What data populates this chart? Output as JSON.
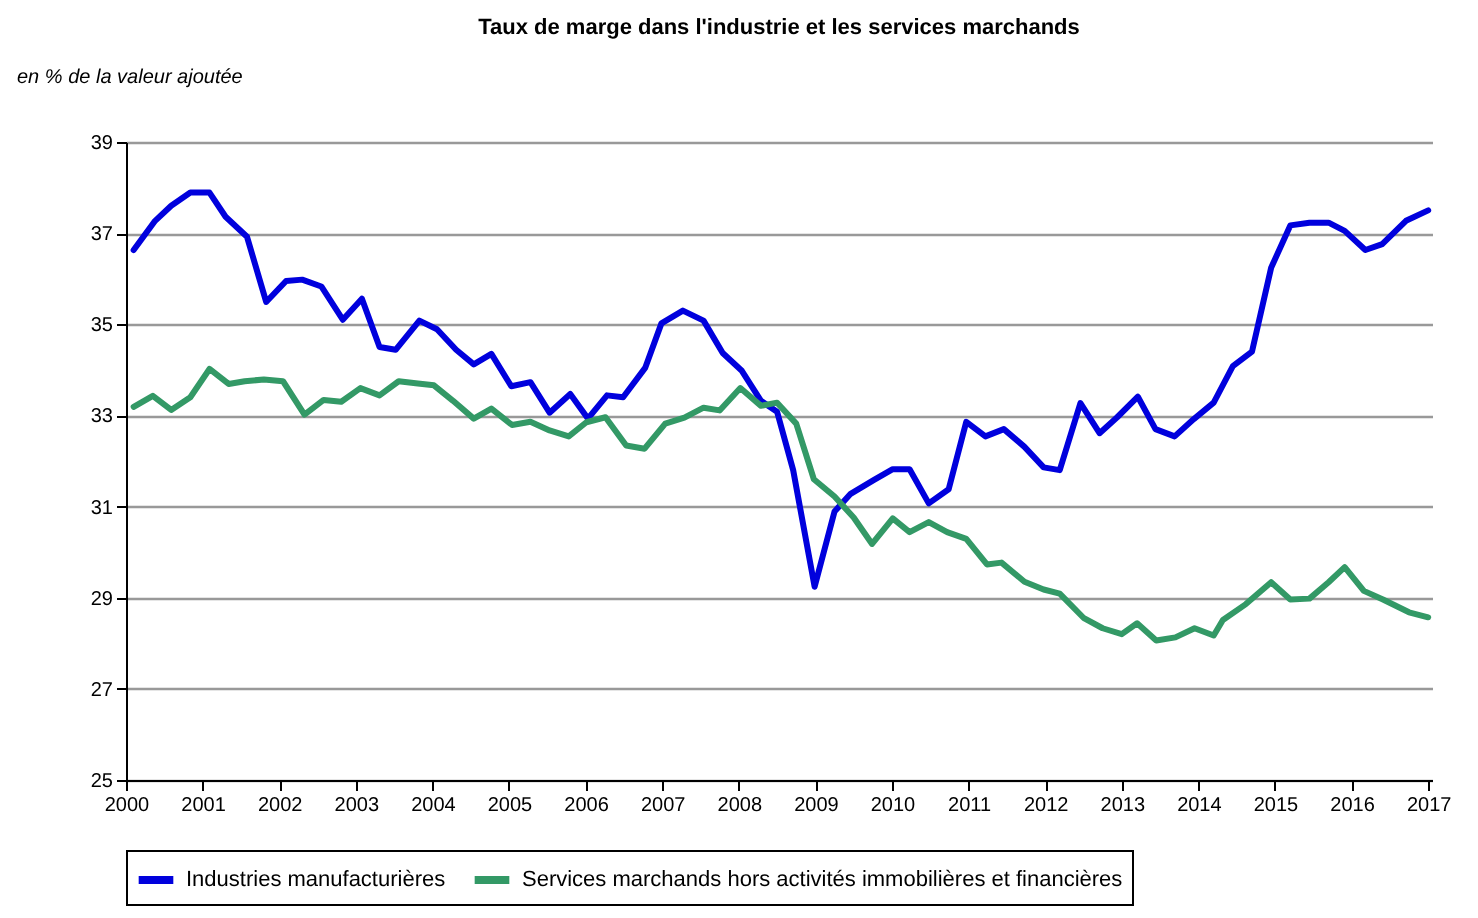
{
  "chart_data": {
    "type": "line",
    "title": "Taux de marge dans l'industrie et les services marchands",
    "ylabel": "en % de la valeur ajoutée",
    "xlim": [
      2000,
      2017.05
    ],
    "xticks": [
      2000,
      2001,
      2002,
      2003,
      2004,
      2005,
      2006,
      2007,
      2008,
      2009,
      2010,
      2011,
      2012,
      2013,
      2014,
      2015,
      2016,
      2017
    ],
    "ylim": [
      25,
      39
    ],
    "yticks": [
      25,
      27,
      29,
      31,
      33,
      35,
      37,
      39
    ],
    "grid": "y",
    "legend": "bottom",
    "marker": "none",
    "series": [
      {
        "name": "Industries manufacturières",
        "color": "#0000dd",
        "x": [
          2000.1,
          2000.38,
          2000.59,
          2000.84,
          2001.09,
          2001.3,
          2001.58,
          2001.83,
          2002.09,
          2002.3,
          2002.55,
          2002.83,
          2003.08,
          2003.31,
          2003.52,
          2003.83,
          2004.06,
          2004.31,
          2004.54,
          2004.77,
          2005.03,
          2005.28,
          2005.53,
          2005.8,
          2006.03,
          2006.28,
          2006.49,
          2006.78,
          2006.99,
          2007.27,
          2007.54,
          2007.79,
          2008.04,
          2008.29,
          2008.5,
          2008.71,
          2008.99,
          2009.25,
          2009.46,
          2009.76,
          2010.01,
          2010.23,
          2010.48,
          2010.74,
          2010.97,
          2011.22,
          2011.46,
          2011.73,
          2011.98,
          2012.19,
          2012.46,
          2012.71,
          2012.94,
          2013.21,
          2013.44,
          2013.69,
          2013.94,
          2014.2,
          2014.45,
          2014.7,
          2014.95,
          2015.2,
          2015.45,
          2015.7,
          2015.91,
          2016.18,
          2016.4,
          2016.71,
          2017.0
        ],
        "values": [
          36.63,
          37.27,
          37.6,
          37.89,
          37.89,
          37.36,
          36.92,
          35.49,
          35.95,
          35.98,
          35.83,
          35.1,
          35.56,
          34.5,
          34.44,
          35.08,
          34.89,
          34.44,
          34.12,
          34.35,
          33.64,
          33.73,
          33.06,
          33.47,
          32.93,
          33.44,
          33.4,
          34.05,
          35.02,
          35.3,
          35.08,
          34.37,
          33.98,
          33.32,
          33.08,
          31.8,
          29.24,
          30.89,
          31.28,
          31.58,
          31.82,
          31.82,
          31.07,
          31.38,
          32.86,
          32.54,
          32.7,
          32.31,
          31.86,
          31.8,
          33.27,
          32.61,
          32.96,
          33.41,
          32.7,
          32.54,
          32.92,
          33.28,
          34.08,
          34.4,
          36.24,
          37.17,
          37.23,
          37.23,
          37.05,
          36.63,
          36.76,
          37.27,
          37.5
        ]
      },
      {
        "name": "Services marchands hors activités immobilières et financières",
        "color": "#339966",
        "x": [
          2000.1,
          2000.35,
          2000.59,
          2000.84,
          2001.09,
          2001.34,
          2001.55,
          2001.8,
          2002.05,
          2002.33,
          2002.58,
          2002.81,
          2003.06,
          2003.31,
          2003.56,
          2003.81,
          2004.02,
          2004.27,
          2004.54,
          2004.77,
          2005.04,
          2005.28,
          2005.53,
          2005.78,
          2006.01,
          2006.26,
          2006.53,
          2006.77,
          2007.04,
          2007.29,
          2007.54,
          2007.75,
          2008.02,
          2008.29,
          2008.5,
          2008.75,
          2008.98,
          2009.25,
          2009.5,
          2009.74,
          2010.01,
          2010.23,
          2010.48,
          2010.72,
          2010.97,
          2011.24,
          2011.43,
          2011.73,
          2011.98,
          2012.19,
          2012.5,
          2012.75,
          2013.0,
          2013.2,
          2013.45,
          2013.7,
          2013.95,
          2014.2,
          2014.32,
          2014.62,
          2014.95,
          2015.2,
          2015.45,
          2015.7,
          2015.91,
          2016.16,
          2016.41,
          2016.75,
          2017.0
        ],
        "values": [
          33.19,
          33.43,
          33.12,
          33.4,
          34.02,
          33.69,
          33.75,
          33.79,
          33.75,
          33.02,
          33.34,
          33.3,
          33.6,
          33.44,
          33.75,
          33.7,
          33.66,
          33.32,
          32.93,
          33.15,
          32.79,
          32.86,
          32.67,
          32.54,
          32.85,
          32.96,
          32.34,
          32.27,
          32.82,
          32.95,
          33.17,
          33.11,
          33.6,
          33.21,
          33.28,
          32.82,
          31.6,
          31.22,
          30.76,
          30.18,
          30.74,
          30.44,
          30.66,
          30.44,
          30.29,
          29.73,
          29.77,
          29.35,
          29.18,
          29.09,
          28.56,
          28.33,
          28.2,
          28.44,
          28.06,
          28.13,
          28.33,
          28.17,
          28.51,
          28.86,
          29.34,
          28.96,
          28.98,
          29.34,
          29.67,
          29.15,
          28.96,
          28.68,
          28.57
        ]
      }
    ]
  }
}
